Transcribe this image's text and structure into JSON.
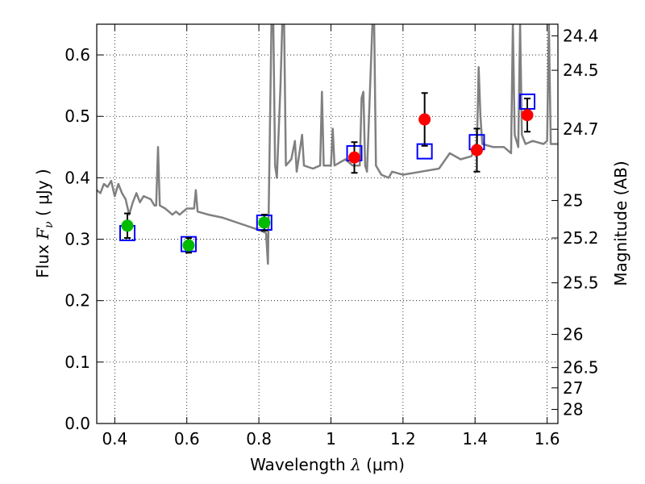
{
  "chart_data": {
    "type": "line",
    "xlabel_pre": "Wavelength",
    "xlabel_sym": "λ",
    "xlabel_unit": "(μm)",
    "ylabel_pre": "Flux",
    "ylabel_sym": "F",
    "ylabel_sub": "ν",
    "ylabel_unit": "( μJy )",
    "y2label": "Magnitude (AB)",
    "xlim": [
      0.35,
      1.63
    ],
    "ylim": [
      0.0,
      0.65
    ],
    "grid": true,
    "x_ticks": [
      0.4,
      0.6,
      0.8,
      1.0,
      1.2,
      1.4,
      1.6
    ],
    "x_tick_labels": [
      "0.4",
      "0.6",
      "0.8",
      "1",
      "1.2",
      "1.4",
      "1.6"
    ],
    "y_ticks": [
      0.0,
      0.1,
      0.2,
      0.3,
      0.4,
      0.5,
      0.6
    ],
    "y_tick_labels": [
      "0.0",
      "0.1",
      "0.2",
      "0.3",
      "0.4",
      "0.5",
      "0.6"
    ],
    "mag_ticks": [
      {
        "label": "24.4",
        "flux": 0.631
      },
      {
        "label": "24.5",
        "flux": 0.575
      },
      {
        "label": "24.7",
        "flux": 0.479
      },
      {
        "label": "25",
        "flux": 0.363
      },
      {
        "label": "25.2",
        "flux": 0.302
      },
      {
        "label": "25.5",
        "flux": 0.229
      },
      {
        "label": "26",
        "flux": 0.145
      },
      {
        "label": "26.5",
        "flux": 0.091
      },
      {
        "label": "27",
        "flux": 0.058
      },
      {
        "label": "28",
        "flux": 0.023
      }
    ],
    "series": [
      {
        "kind": "model-spectrum",
        "color": "#808080",
        "points": [
          [
            0.35,
            0.38
          ],
          [
            0.36,
            0.375
          ],
          [
            0.37,
            0.39
          ],
          [
            0.38,
            0.385
          ],
          [
            0.39,
            0.395
          ],
          [
            0.4,
            0.37
          ],
          [
            0.41,
            0.39
          ],
          [
            0.42,
            0.375
          ],
          [
            0.43,
            0.365
          ],
          [
            0.44,
            0.34
          ],
          [
            0.45,
            0.36
          ],
          [
            0.46,
            0.375
          ],
          [
            0.47,
            0.36
          ],
          [
            0.48,
            0.37
          ],
          [
            0.5,
            0.365
          ],
          [
            0.51,
            0.355
          ],
          [
            0.515,
            0.355
          ],
          [
            0.52,
            0.45
          ],
          [
            0.525,
            0.355
          ],
          [
            0.54,
            0.35
          ],
          [
            0.55,
            0.345
          ],
          [
            0.56,
            0.34
          ],
          [
            0.57,
            0.345
          ],
          [
            0.58,
            0.34
          ],
          [
            0.6,
            0.35
          ],
          [
            0.62,
            0.35
          ],
          [
            0.625,
            0.38
          ],
          [
            0.63,
            0.345
          ],
          [
            0.66,
            0.34
          ],
          [
            0.7,
            0.335
          ],
          [
            0.75,
            0.325
          ],
          [
            0.8,
            0.315
          ],
          [
            0.82,
            0.31
          ],
          [
            0.825,
            0.26
          ],
          [
            0.835,
            0.65
          ],
          [
            0.84,
            0.65
          ],
          [
            0.845,
            0.42
          ],
          [
            0.85,
            0.4
          ],
          [
            0.86,
            0.55
          ],
          [
            0.865,
            0.65
          ],
          [
            0.87,
            0.65
          ],
          [
            0.875,
            0.42
          ],
          [
            0.89,
            0.43
          ],
          [
            0.9,
            0.46
          ],
          [
            0.905,
            0.41
          ],
          [
            0.92,
            0.47
          ],
          [
            0.925,
            0.42
          ],
          [
            0.95,
            0.415
          ],
          [
            0.97,
            0.42
          ],
          [
            0.975,
            0.54
          ],
          [
            0.98,
            0.42
          ],
          [
            1.0,
            0.42
          ],
          [
            1.005,
            0.48
          ],
          [
            1.01,
            0.42
          ],
          [
            1.04,
            0.43
          ],
          [
            1.06,
            0.42
          ],
          [
            1.08,
            0.42
          ],
          [
            1.085,
            0.53
          ],
          [
            1.09,
            0.54
          ],
          [
            1.095,
            0.42
          ],
          [
            1.1,
            0.41
          ],
          [
            1.115,
            0.65
          ],
          [
            1.12,
            0.65
          ],
          [
            1.125,
            0.42
          ],
          [
            1.14,
            0.405
          ],
          [
            1.16,
            0.4
          ],
          [
            1.17,
            0.41
          ],
          [
            1.2,
            0.405
          ],
          [
            1.25,
            0.41
          ],
          [
            1.3,
            0.415
          ],
          [
            1.33,
            0.44
          ],
          [
            1.36,
            0.43
          ],
          [
            1.39,
            0.435
          ],
          [
            1.4,
            0.45
          ],
          [
            1.405,
            0.45
          ],
          [
            1.41,
            0.58
          ],
          [
            1.415,
            0.5
          ],
          [
            1.42,
            0.455
          ],
          [
            1.45,
            0.45
          ],
          [
            1.48,
            0.45
          ],
          [
            1.5,
            0.44
          ],
          [
            1.505,
            0.65
          ],
          [
            1.51,
            0.47
          ],
          [
            1.52,
            0.45
          ],
          [
            1.525,
            0.65
          ],
          [
            1.53,
            0.47
          ],
          [
            1.54,
            0.455
          ],
          [
            1.56,
            0.46
          ],
          [
            1.59,
            0.455
          ],
          [
            1.6,
            0.46
          ],
          [
            1.605,
            0.65
          ],
          [
            1.61,
            0.455
          ],
          [
            1.63,
            0.455
          ]
        ]
      },
      {
        "kind": "model-photometry",
        "color": "#0000ff",
        "points": [
          [
            0.435,
            0.31
          ],
          [
            0.605,
            0.292
          ],
          [
            0.815,
            0.327
          ],
          [
            1.065,
            0.44
          ],
          [
            1.26,
            0.443
          ],
          [
            1.405,
            0.458
          ],
          [
            1.545,
            0.524
          ]
        ]
      },
      {
        "kind": "observed-green",
        "color": "#00bb00",
        "points": [
          {
            "x": 0.435,
            "y": 0.322,
            "err": 0.02
          },
          {
            "x": 0.605,
            "y": 0.29,
            "err": 0.012
          },
          {
            "x": 0.815,
            "y": 0.327,
            "err": 0.013
          }
        ]
      },
      {
        "kind": "observed-red",
        "color": "#ff0000",
        "points": [
          {
            "x": 1.065,
            "y": 0.433,
            "err": 0.025
          },
          {
            "x": 1.26,
            "y": 0.495,
            "err": 0.043
          },
          {
            "x": 1.405,
            "y": 0.445,
            "err": 0.035
          },
          {
            "x": 1.545,
            "y": 0.502,
            "err": 0.027
          }
        ]
      }
    ]
  }
}
